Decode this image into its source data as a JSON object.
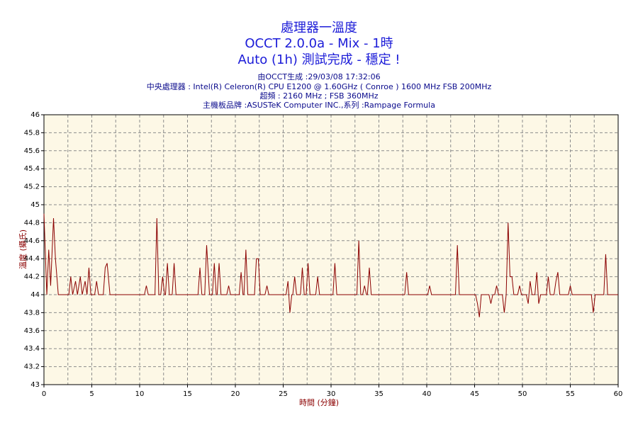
{
  "chart_data": {
    "type": "line",
    "title": [
      "處理器一溫度",
      "OCCT 2.0.0a - Mix - 1時",
      "Auto (1h) 測試完成 - 穩定 !"
    ],
    "subtitle": [
      "由OCCT生成 :29/03/08 17:32:06",
      "中央處理器 : Intel(R) Celeron(R) CPU E1200 @ 1.60GHz ( Conroe ) 1600 MHz FSB 200MHz",
      "超頻 : 2160 MHz ; FSB 360MHz",
      "主機板品牌 :ASUSTeK Computer INC.,系列 :Rampage Formula"
    ],
    "xlabel": "時間 (分鐘)",
    "ylabel": "溫度 (攝氏)",
    "xlim": [
      0,
      60
    ],
    "xticks": [
      0,
      5,
      10,
      15,
      20,
      25,
      30,
      35,
      40,
      45,
      50,
      55,
      60
    ],
    "xgrid": [
      2.5,
      7.5,
      12.5,
      17.5,
      22.5,
      27.5,
      32.5,
      37.5,
      42.5,
      47.5,
      52.5,
      57.5
    ],
    "ylim": [
      43,
      46
    ],
    "yticks": [
      43,
      43.2,
      43.4,
      43.6,
      43.8,
      44,
      44.2,
      44.4,
      44.6,
      44.8,
      45,
      45.2,
      45.4,
      45.6,
      45.8,
      46
    ],
    "grid": true,
    "background": "#fdf8e6",
    "x": [
      0,
      0.3,
      0.5,
      0.7,
      1.0,
      1.2,
      1.5,
      2.6,
      2.8,
      3.0,
      3.3,
      3.5,
      3.8,
      4.0,
      4.3,
      4.5,
      4.7,
      4.9,
      5.3,
      5.5,
      5.7,
      6.2,
      6.4,
      6.6,
      6.9,
      10.5,
      10.7,
      10.9,
      11.6,
      11.8,
      12.0,
      12.2,
      12.4,
      12.6,
      12.7,
      12.9,
      13.1,
      13.4,
      13.6,
      13.8,
      16.1,
      16.3,
      16.5,
      16.8,
      17.0,
      17.3,
      17.6,
      17.8,
      18.0,
      18.1,
      18.3,
      18.5,
      19.1,
      19.3,
      19.5,
      20.4,
      20.6,
      20.8,
      20.9,
      21.1,
      21.3,
      22.0,
      22.2,
      22.4,
      22.6,
      23.1,
      23.3,
      23.5,
      25.3,
      25.5,
      25.7,
      25.9,
      26.0,
      26.2,
      26.4,
      26.8,
      27.0,
      27.2,
      27.4,
      27.6,
      27.8,
      28.4,
      28.6,
      28.8,
      30.2,
      30.4,
      30.6,
      32.7,
      32.9,
      33.1,
      33.3,
      33.5,
      33.7,
      33.8,
      34.0,
      34.2,
      37.7,
      37.9,
      38.1,
      40.1,
      40.3,
      40.5,
      43.0,
      43.2,
      43.4,
      45.1,
      45.3,
      45.5,
      45.7,
      46.5,
      46.7,
      46.9,
      47.1,
      47.3,
      47.5,
      47.9,
      48.1,
      48.3,
      48.5,
      48.7,
      48.9,
      49.1,
      49.5,
      49.7,
      49.9,
      50.4,
      50.6,
      50.8,
      51.0,
      51.3,
      51.5,
      51.7,
      51.9,
      52.5,
      52.7,
      52.9,
      53.3,
      53.5,
      53.7,
      53.9,
      54.8,
      55.0,
      55.2,
      57.2,
      57.4,
      57.6,
      58.5,
      58.7,
      58.9,
      60
    ],
    "series": [
      {
        "color": "#8b0000",
        "values": [
          44.9,
          44.0,
          44.5,
          44.1,
          44.85,
          44.4,
          44.0,
          44,
          44.2,
          44,
          44.15,
          44,
          44.2,
          44,
          44.15,
          44,
          44.3,
          44,
          44,
          44.15,
          44,
          44,
          44.3,
          44.35,
          44,
          44,
          44.1,
          44,
          44,
          44.85,
          44,
          44,
          44.2,
          44,
          44,
          44.35,
          44,
          44,
          44.35,
          44,
          44,
          44.3,
          44,
          44,
          44.55,
          44,
          44,
          44.35,
          44,
          44,
          44.35,
          44,
          44,
          44.1,
          44,
          44,
          44.25,
          44,
          44,
          44.5,
          44,
          44,
          44.4,
          44.4,
          44,
          44,
          44.1,
          44,
          44,
          44.15,
          43.8,
          44,
          44,
          44.2,
          44,
          44,
          44.3,
          44,
          44,
          44.35,
          44,
          44,
          44.2,
          44,
          44,
          44.35,
          44,
          44,
          44.6,
          44,
          44,
          44.1,
          44,
          44,
          44.3,
          44,
          44,
          44.25,
          44,
          44,
          44.1,
          44,
          44,
          44.55,
          44,
          44,
          43.9,
          43.75,
          44,
          44,
          43.9,
          44,
          44,
          44.1,
          44,
          44,
          43.8,
          44,
          44.8,
          44.2,
          44.2,
          44,
          44,
          44.1,
          44,
          44,
          43.9,
          44.15,
          44,
          44,
          44.25,
          43.9,
          44,
          44,
          44.2,
          44,
          44,
          44.15,
          44.25,
          44,
          44,
          44.1,
          44,
          44,
          43.8,
          44,
          44,
          44.45,
          44,
          44
        ]
      }
    ]
  }
}
